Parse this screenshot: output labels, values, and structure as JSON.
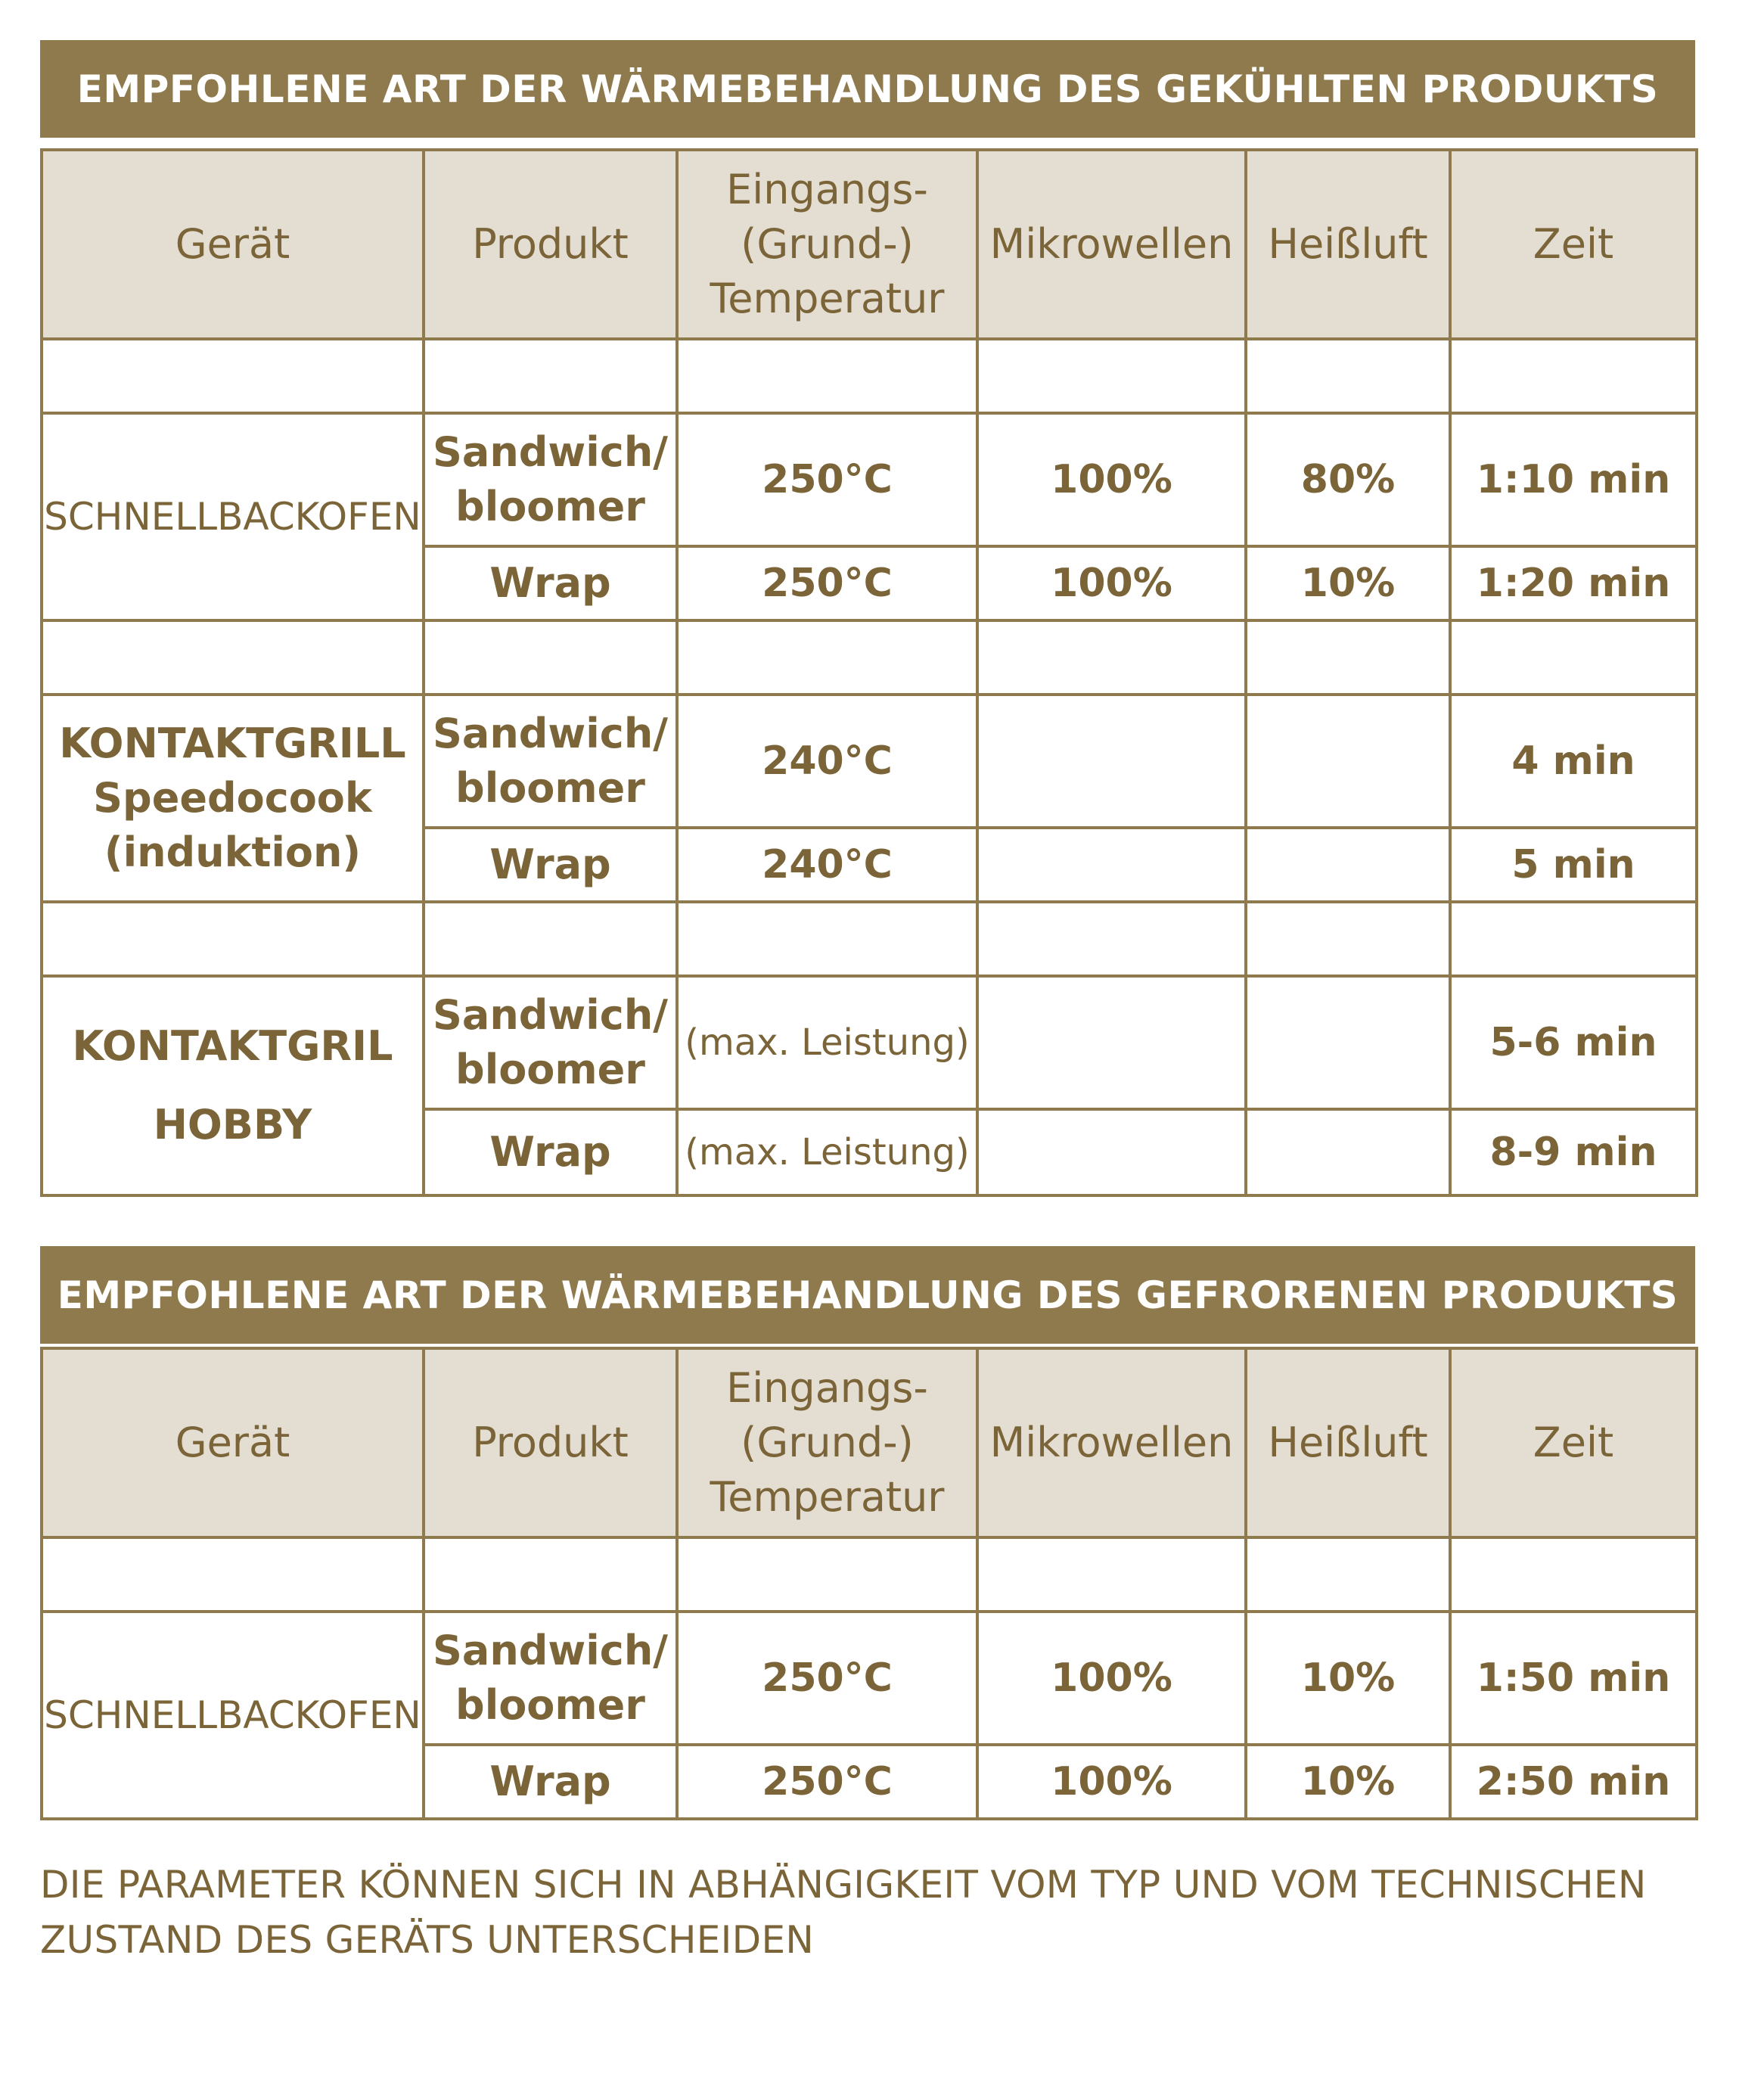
{
  "chilled": {
    "title": "EMPFOHLENE ART DER WÄRMEBEHANDLUNG DES GEKÜHLTEN PRODUKTS",
    "headers": {
      "device": "Gerät",
      "product": "Produkt",
      "temp_line1": "Eingangs-",
      "temp_line2": "(Grund-)",
      "temp_line3": "Temperatur",
      "microwave": "Mikrowellen",
      "hot_air": "Heißluft",
      "time": "Zeit"
    },
    "groups": [
      {
        "device_lines": [
          "SCHNELLBACKOFEN"
        ],
        "rows": [
          {
            "product_line1": "Sandwich/",
            "product_line2": "bloomer",
            "temp": "250°C",
            "microwave": "100%",
            "hot_air": "80%",
            "time": "1:10 min"
          },
          {
            "product_line1": "Wrap",
            "temp": "250°C",
            "microwave": "100%",
            "hot_air": "10%",
            "time": "1:20 min"
          }
        ]
      },
      {
        "device_lines": [
          "KONTAKTGRILL",
          "Speedocook",
          "(induktion)"
        ],
        "rows": [
          {
            "product_line1": "Sandwich/",
            "product_line2": "bloomer",
            "temp": "240°C",
            "microwave": "",
            "hot_air": "",
            "time": "4 min"
          },
          {
            "product_line1": "Wrap",
            "temp": "240°C",
            "microwave": "",
            "hot_air": "",
            "time": "5 min"
          }
        ]
      },
      {
        "device_lines": [
          "KONTAKTGRIL",
          "HOBBY"
        ],
        "rows": [
          {
            "product_line1": "Sandwich/",
            "product_line2": "bloomer",
            "temp": "(max. Leistung)",
            "microwave": "",
            "hot_air": "",
            "time": "5-6 min"
          },
          {
            "product_line1": "Wrap",
            "temp": "(max. Leistung)",
            "microwave": "",
            "hot_air": "",
            "time": "8-9 min"
          }
        ]
      }
    ]
  },
  "frozen": {
    "title": "EMPFOHLENE ART DER WÄRMEBEHANDLUNG DES GEFRORENEN PRODUKTS",
    "headers": {
      "device": "Gerät",
      "product": "Produkt",
      "temp_line1": "Eingangs-",
      "temp_line2": "(Grund-)",
      "temp_line3": "Temperatur",
      "microwave": "Mikrowellen",
      "hot_air": "Heißluft",
      "time": "Zeit"
    },
    "groups": [
      {
        "device_lines": [
          "SCHNELLBACKOFEN"
        ],
        "rows": [
          {
            "product_line1": "Sandwich/",
            "product_line2": "bloomer",
            "temp": "250°C",
            "microwave": "100%",
            "hot_air": "10%",
            "time": "1:50 min"
          },
          {
            "product_line1": "Wrap",
            "temp": "250°C",
            "microwave": "100%",
            "hot_air": "10%",
            "time": "2:50 min"
          }
        ]
      }
    ]
  },
  "note": {
    "line1": "DIE PARAMETER KÖNNEN SICH IN ABHÄNGIGKEIT VOM TYP UND VOM TECHNISCHEN",
    "line2": "ZUSTAND DES GERÄTS UNTERSCHEIDEN"
  }
}
